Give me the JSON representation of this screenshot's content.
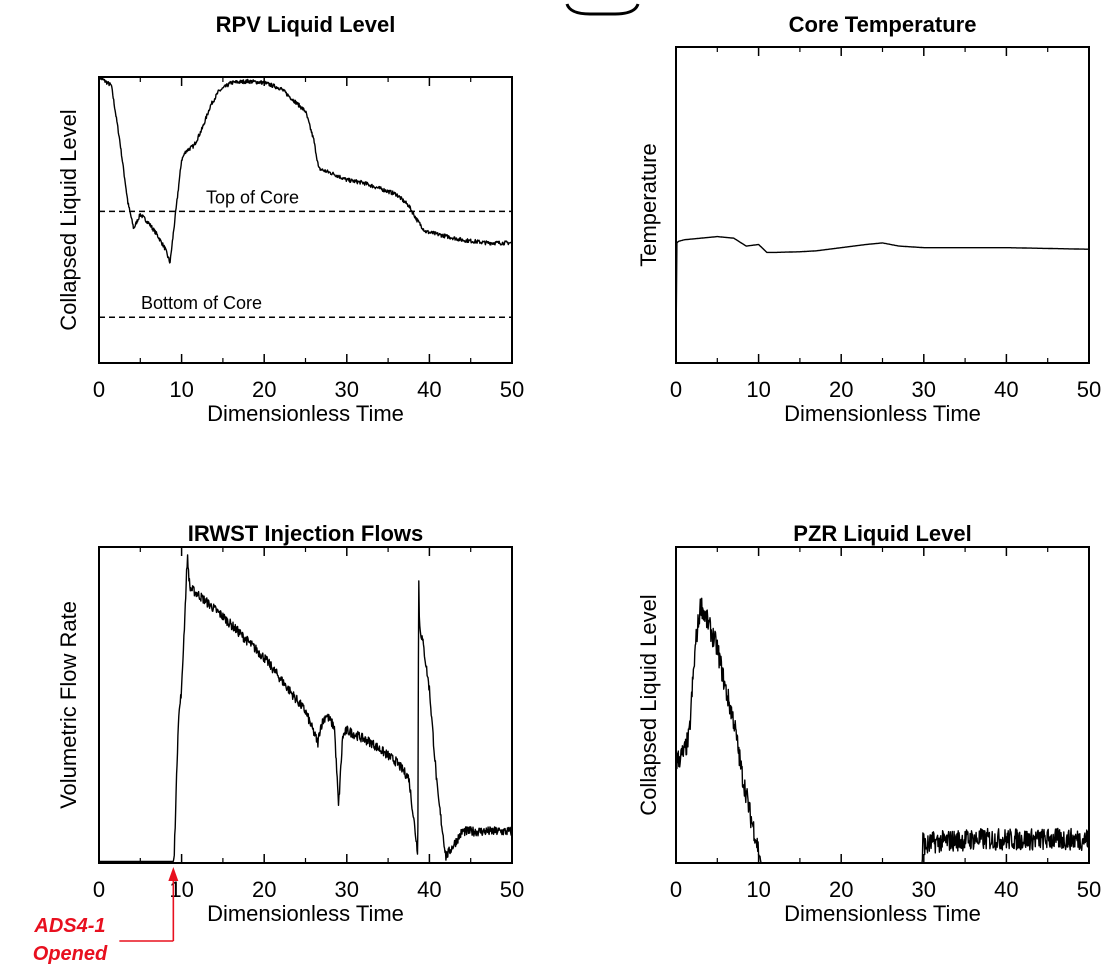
{
  "colors": {
    "line": "#000000",
    "annotation": "#e8101f"
  },
  "chart_data": [
    {
      "type": "line",
      "title": "RPV Liquid Level",
      "xlabel": "Dimensionless Time",
      "ylabel": "Collapsed Liquid Level",
      "xlim": [
        0,
        50
      ],
      "ylim": [
        0,
        100
      ],
      "xticks": [
        "0",
        "10",
        "20",
        "30",
        "40",
        "50"
      ],
      "y_ticklabels": false,
      "reference_lines": [
        {
          "label": "Top of Core",
          "y": 53
        },
        {
          "label": "Bottom of Core",
          "y": 16
        }
      ],
      "series": [
        {
          "noise": 0.7,
          "x": [
            0,
            1.5,
            2.5,
            3.5,
            4.2,
            5,
            6,
            7,
            8,
            8.6,
            9.3,
            10,
            10.5,
            11.5,
            12.5,
            13.5,
            14.5,
            16,
            18,
            20,
            22,
            23.5,
            25,
            26,
            26.6,
            27.5,
            28.5,
            30,
            32,
            34,
            36,
            37.5,
            38.5,
            39.5,
            41,
            44,
            47,
            50
          ],
          "y": [
            100,
            97,
            78,
            56,
            47,
            52,
            49,
            45,
            40,
            35,
            53,
            71,
            74,
            76,
            82,
            90,
            95,
            98,
            98.5,
            98,
            96,
            92,
            88,
            78,
            68,
            67,
            66,
            64,
            63,
            61,
            59,
            55,
            50,
            46,
            45,
            43,
            42,
            42
          ]
        }
      ]
    },
    {
      "type": "line",
      "title": "Core Temperature",
      "xlabel": "Dimensionless Time",
      "ylabel": "Temperature",
      "xlim": [
        0,
        50
      ],
      "ylim": [
        0,
        100
      ],
      "xticks": [
        "0",
        "10",
        "20",
        "30",
        "40",
        "50"
      ],
      "y_ticklabels": false,
      "series": [
        {
          "noise": 0,
          "x": [
            0,
            0.1,
            0.3,
            1,
            3,
            5,
            7,
            8.5,
            10,
            11,
            12,
            15,
            17,
            20,
            23,
            25,
            27,
            30,
            40,
            50
          ],
          "y": [
            6,
            38,
            38.5,
            39,
            39.5,
            40,
            39.5,
            37,
            37.5,
            35,
            35,
            35.2,
            35.5,
            36.5,
            37.5,
            38,
            37,
            36.5,
            36.5,
            36
          ]
        }
      ]
    },
    {
      "type": "line",
      "title": "IRWST Injection Flows",
      "xlabel": "Dimensionless Time",
      "ylabel": "Volumetric Flow Rate",
      "xlim": [
        0,
        50
      ],
      "ylim": [
        0,
        100
      ],
      "xticks": [
        "0",
        "10",
        "20",
        "30",
        "40",
        "50"
      ],
      "y_ticklabels": false,
      "annotation": {
        "text": [
          "ADS4-1",
          "Opened"
        ],
        "x": 9
      },
      "series": [
        {
          "noise": 1.5,
          "x": [
            0,
            9,
            9.1,
            9.6,
            10,
            10.7,
            11,
            12,
            15,
            20,
            25,
            26.5,
            26.8,
            27.5,
            28.5,
            29,
            29.5,
            30,
            33,
            36,
            37.5,
            38.6,
            38.7,
            38.8,
            39.2,
            40,
            41,
            41.5,
            42,
            44,
            47,
            50
          ],
          "y": [
            0.5,
            0.5,
            2,
            45,
            55,
            97,
            87,
            85,
            78,
            65,
            48,
            38,
            43,
            47,
            43,
            18,
            40,
            42,
            38,
            32,
            27,
            3,
            93,
            75,
            70,
            55,
            22,
            12,
            2,
            10,
            10,
            10
          ]
        }
      ]
    },
    {
      "type": "line",
      "title": "PZR Liquid Level",
      "xlabel": "Dimensionless Time",
      "ylabel": "Collapsed Liquid Level",
      "xlim": [
        0,
        50
      ],
      "ylim": [
        0,
        100
      ],
      "xticks": [
        "0",
        "10",
        "20",
        "30",
        "40",
        "50"
      ],
      "y_ticklabels": false,
      "series": [
        {
          "noise": 3.5,
          "x": [
            0,
            1,
            1.6,
            2,
            2.4,
            3,
            4,
            5,
            6,
            7,
            8,
            8.5,
            9,
            9.5,
            10,
            10.3,
            10.5,
            29.8,
            29.9,
            30.2,
            31,
            33,
            36,
            40,
            45,
            50
          ],
          "y": [
            32,
            35,
            40,
            56,
            70,
            82,
            75,
            68,
            55,
            45,
            28,
            22,
            15,
            10,
            4,
            0,
            0,
            0,
            8,
            5,
            6.5,
            7,
            7.5,
            7.5,
            7.5,
            7.5
          ]
        }
      ]
    }
  ]
}
